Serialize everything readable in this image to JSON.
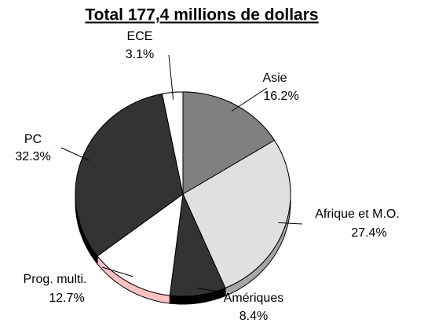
{
  "chart_data": {
    "type": "pie",
    "title": "Total 177,4 millions de dollars",
    "categories": [
      "Asie",
      "Afrique et M.O.",
      "Amériques",
      "Prog. multi.",
      "PC",
      "ECE"
    ],
    "values": [
      16.2,
      27.4,
      8.4,
      12.7,
      32.3,
      3.1
    ],
    "value_labels": [
      "16.2%",
      "27.4%",
      "8.4%",
      "12.7%",
      "32.3%",
      "3.1%"
    ],
    "colors": [
      "#808080",
      "#e0e0e0",
      "#333333",
      "#ffffff",
      "#333333",
      "#ffffff"
    ],
    "side_colors": [
      "#555555",
      "#a6a6a6",
      "#000000",
      "#ffc0c0",
      "#000000",
      "#cccccc"
    ]
  }
}
